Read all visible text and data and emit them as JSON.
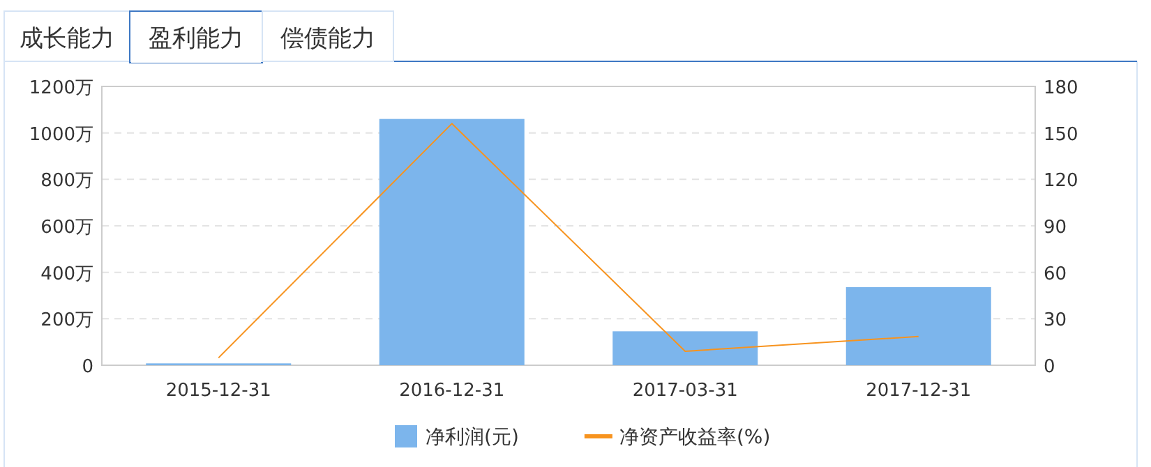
{
  "chart_data": {
    "type": "bar",
    "categories": [
      "2015-12-31",
      "2016-12-31",
      "2017-03-31",
      "2017-12-31"
    ],
    "series": [
      {
        "name": "净利润(元)",
        "color": "#7cb5ec",
        "values": [
          8,
          1060,
          146,
          336
        ]
      },
      {
        "name": "净资产收益率(%)",
        "type": "line",
        "axis": "y2",
        "color": "#f7931e",
        "values": [
          4.8,
          156,
          9,
          18.6
        ]
      }
    ],
    "ylim": [
      0,
      1200
    ],
    "yticks": [
      {
        "value": 0,
        "label": "0"
      },
      {
        "value": 200,
        "label": "200万"
      },
      {
        "value": 400,
        "label": "400万"
      },
      {
        "value": 600,
        "label": "600万"
      },
      {
        "value": 800,
        "label": "800万"
      },
      {
        "value": 1000,
        "label": "1000万"
      },
      {
        "value": 1200,
        "label": "1200万"
      }
    ],
    "y2lim": [
      0,
      180
    ],
    "y2ticks": [
      0,
      30,
      60,
      90,
      120,
      150,
      180
    ],
    "grid": "y",
    "legend": "bottom",
    "annotations": [
      "成长能力",
      "盈利能力",
      "偿债能力"
    ]
  }
}
